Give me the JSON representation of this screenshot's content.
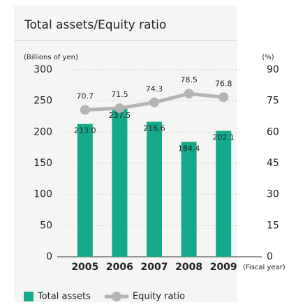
{
  "chart_data": {
    "type": "bar",
    "title": "Total assets/Equity ratio",
    "y_label": "(Billions of yen)",
    "y2_label": "(%)",
    "x_label": "(Fiscal year)",
    "categories": [
      "2005",
      "2006",
      "2007",
      "2008",
      "2009"
    ],
    "series": [
      {
        "name": "Total assets",
        "type": "bar",
        "color": "#14a98a",
        "values": [
          213.0,
          237.5,
          216.6,
          184.4,
          202.1
        ],
        "value_labels": [
          "213.0",
          "237.5",
          "216.6",
          "184.4",
          "202.1"
        ]
      },
      {
        "name": "Equity ratio",
        "type": "line",
        "axis": "y2",
        "color": "#b4b4b4",
        "values": [
          70.7,
          71.5,
          74.3,
          78.5,
          76.8
        ]
      }
    ],
    "ylim": [
      0,
      300
    ],
    "yticks": [
      0,
      50,
      100,
      150,
      200,
      250,
      300
    ],
    "y2lim": [
      0,
      90
    ],
    "y2ticks": [
      0,
      15,
      30,
      45,
      60,
      75,
      90
    ],
    "grid": true
  }
}
